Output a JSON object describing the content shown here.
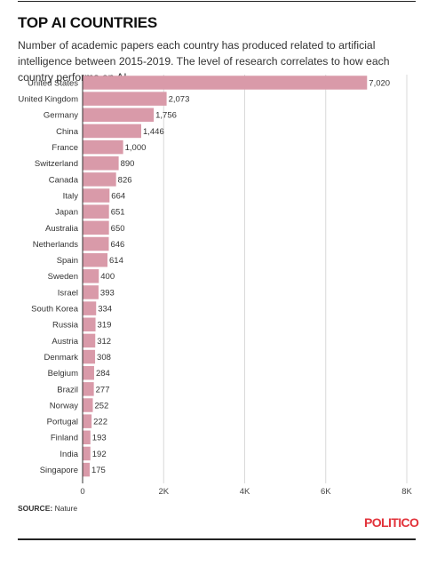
{
  "header": {
    "title": "TOP AI COUNTRIES",
    "subtitle": "Number of academic papers each country has produced related to artificial intelligence between 2015-2019. The level of research correlates to how each country performs on AI."
  },
  "footer": {
    "source_label": "SOURCE:",
    "source_text": "Nature",
    "logo": "POLITICO"
  },
  "colors": {
    "bar": "#d99aa9",
    "grid": "#d9d9d9",
    "logo": "#e2323a"
  },
  "chart_data": {
    "type": "bar",
    "orientation": "horizontal",
    "categories": [
      "United States",
      "United Kingdom",
      "Germany",
      "China",
      "France",
      "Switzerland",
      "Canada",
      "Italy",
      "Japan",
      "Australia",
      "Netherlands",
      "Spain",
      "Sweden",
      "Israel",
      "South Korea",
      "Russia",
      "Austria",
      "Denmark",
      "Belgium",
      "Brazil",
      "Norway",
      "Portugal",
      "Finland",
      "India",
      "Singapore"
    ],
    "values": [
      7020,
      2073,
      1756,
      1446,
      1000,
      890,
      826,
      664,
      651,
      650,
      646,
      614,
      400,
      393,
      334,
      319,
      312,
      308,
      284,
      277,
      252,
      222,
      193,
      192,
      175
    ],
    "value_labels": [
      "7,020",
      "2,073",
      "1,756",
      "1,446",
      "1,000",
      "890",
      "826",
      "664",
      "651",
      "650",
      "646",
      "614",
      "400",
      "393",
      "334",
      "319",
      "312",
      "308",
      "284",
      "277",
      "252",
      "222",
      "193",
      "192",
      "175"
    ],
    "xlim": [
      0,
      8000
    ],
    "xticks": [
      0,
      2000,
      4000,
      6000,
      8000
    ],
    "xtick_labels": [
      "0",
      "2K",
      "4K",
      "6K",
      "8K"
    ],
    "grid": true,
    "legend": "none"
  }
}
